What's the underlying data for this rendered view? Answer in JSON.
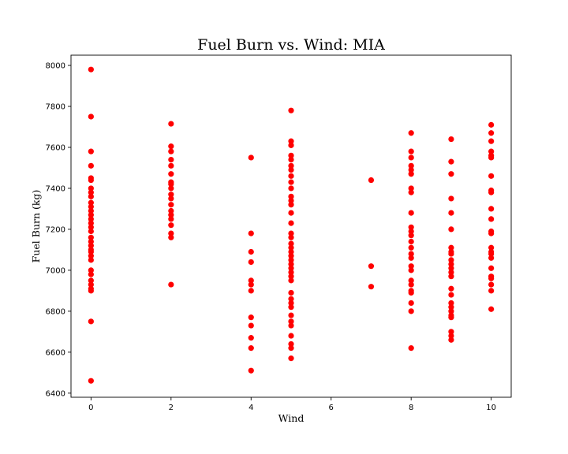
{
  "chart_data": {
    "type": "scatter",
    "title": "Fuel Burn vs. Wind: MIA",
    "xlabel": "Wind",
    "ylabel": "Fuel Burn (kg)",
    "xlim": [
      -0.5,
      10.5
    ],
    "ylim": [
      6380,
      8050
    ],
    "xticks": [
      0,
      2,
      4,
      6,
      8,
      10
    ],
    "yticks": [
      6400,
      6600,
      6800,
      7000,
      7200,
      7400,
      7600,
      7800,
      8000
    ],
    "grid": false,
    "marker_color": "#ff0000",
    "series": [
      {
        "points": [
          [
            0,
            7980
          ],
          [
            0,
            7750
          ],
          [
            0,
            7580
          ],
          [
            0,
            7510
          ],
          [
            0,
            7450
          ],
          [
            0,
            7440
          ],
          [
            0,
            7400
          ],
          [
            0,
            7380
          ],
          [
            0,
            7360
          ],
          [
            0,
            7330
          ],
          [
            0,
            7310
          ],
          [
            0,
            7290
          ],
          [
            0,
            7270
          ],
          [
            0,
            7250
          ],
          [
            0,
            7230
          ],
          [
            0,
            7210
          ],
          [
            0,
            7190
          ],
          [
            0,
            7160
          ],
          [
            0,
            7140
          ],
          [
            0,
            7120
          ],
          [
            0,
            7100
          ],
          [
            0,
            7090
          ],
          [
            0,
            7070
          ],
          [
            0,
            7050
          ],
          [
            0,
            7000
          ],
          [
            0,
            6980
          ],
          [
            0,
            6950
          ],
          [
            0,
            6930
          ],
          [
            0,
            6910
          ],
          [
            0,
            6900
          ],
          [
            0,
            6750
          ],
          [
            0,
            6460
          ],
          [
            2,
            7715
          ],
          [
            2,
            7605
          ],
          [
            2,
            7580
          ],
          [
            2,
            7540
          ],
          [
            2,
            7510
          ],
          [
            2,
            7470
          ],
          [
            2,
            7430
          ],
          [
            2,
            7420
          ],
          [
            2,
            7400
          ],
          [
            2,
            7370
          ],
          [
            2,
            7350
          ],
          [
            2,
            7320
          ],
          [
            2,
            7290
          ],
          [
            2,
            7270
          ],
          [
            2,
            7250
          ],
          [
            2,
            7220
          ],
          [
            2,
            7180
          ],
          [
            2,
            7160
          ],
          [
            2,
            6930
          ],
          [
            4,
            7550
          ],
          [
            4,
            7180
          ],
          [
            4,
            7090
          ],
          [
            4,
            7040
          ],
          [
            4,
            6950
          ],
          [
            4,
            6930
          ],
          [
            4,
            6900
          ],
          [
            4,
            6770
          ],
          [
            4,
            6730
          ],
          [
            4,
            6670
          ],
          [
            4,
            6620
          ],
          [
            4,
            6510
          ],
          [
            5,
            7780
          ],
          [
            5,
            7630
          ],
          [
            5,
            7610
          ],
          [
            5,
            7560
          ],
          [
            5,
            7540
          ],
          [
            5,
            7510
          ],
          [
            5,
            7490
          ],
          [
            5,
            7460
          ],
          [
            5,
            7430
          ],
          [
            5,
            7400
          ],
          [
            5,
            7360
          ],
          [
            5,
            7340
          ],
          [
            5,
            7320
          ],
          [
            5,
            7280
          ],
          [
            5,
            7230
          ],
          [
            5,
            7180
          ],
          [
            5,
            7160
          ],
          [
            5,
            7130
          ],
          [
            5,
            7110
          ],
          [
            5,
            7090
          ],
          [
            5,
            7070
          ],
          [
            5,
            7050
          ],
          [
            5,
            7030
          ],
          [
            5,
            7010
          ],
          [
            5,
            6990
          ],
          [
            5,
            6970
          ],
          [
            5,
            6950
          ],
          [
            5,
            6890
          ],
          [
            5,
            6860
          ],
          [
            5,
            6840
          ],
          [
            5,
            6820
          ],
          [
            5,
            6780
          ],
          [
            5,
            6750
          ],
          [
            5,
            6730
          ],
          [
            5,
            6680
          ],
          [
            5,
            6640
          ],
          [
            5,
            6620
          ],
          [
            5,
            6570
          ],
          [
            7,
            7440
          ],
          [
            7,
            7020
          ],
          [
            7,
            6920
          ],
          [
            8,
            7670
          ],
          [
            8,
            7580
          ],
          [
            8,
            7550
          ],
          [
            8,
            7510
          ],
          [
            8,
            7490
          ],
          [
            8,
            7470
          ],
          [
            8,
            7400
          ],
          [
            8,
            7380
          ],
          [
            8,
            7280
          ],
          [
            8,
            7210
          ],
          [
            8,
            7190
          ],
          [
            8,
            7170
          ],
          [
            8,
            7140
          ],
          [
            8,
            7110
          ],
          [
            8,
            7080
          ],
          [
            8,
            7060
          ],
          [
            8,
            7020
          ],
          [
            8,
            7000
          ],
          [
            8,
            6950
          ],
          [
            8,
            6930
          ],
          [
            8,
            6900
          ],
          [
            8,
            6890
          ],
          [
            8,
            6840
          ],
          [
            8,
            6800
          ],
          [
            8,
            6620
          ],
          [
            9,
            7640
          ],
          [
            9,
            7530
          ],
          [
            9,
            7470
          ],
          [
            9,
            7350
          ],
          [
            9,
            7280
          ],
          [
            9,
            7200
          ],
          [
            9,
            7110
          ],
          [
            9,
            7090
          ],
          [
            9,
            7080
          ],
          [
            9,
            7050
          ],
          [
            9,
            7030
          ],
          [
            9,
            7010
          ],
          [
            9,
            6990
          ],
          [
            9,
            6970
          ],
          [
            9,
            6910
          ],
          [
            9,
            6880
          ],
          [
            9,
            6840
          ],
          [
            9,
            6820
          ],
          [
            9,
            6800
          ],
          [
            9,
            6780
          ],
          [
            9,
            6770
          ],
          [
            9,
            6700
          ],
          [
            9,
            6680
          ],
          [
            9,
            6660
          ],
          [
            10,
            7710
          ],
          [
            10,
            7670
          ],
          [
            10,
            7630
          ],
          [
            10,
            7580
          ],
          [
            10,
            7560
          ],
          [
            10,
            7550
          ],
          [
            10,
            7460
          ],
          [
            10,
            7390
          ],
          [
            10,
            7380
          ],
          [
            10,
            7300
          ],
          [
            10,
            7250
          ],
          [
            10,
            7190
          ],
          [
            10,
            7180
          ],
          [
            10,
            7110
          ],
          [
            10,
            7090
          ],
          [
            10,
            7080
          ],
          [
            10,
            7060
          ],
          [
            10,
            7010
          ],
          [
            10,
            6970
          ],
          [
            10,
            6960
          ],
          [
            10,
            6930
          ],
          [
            10,
            6900
          ],
          [
            10,
            6810
          ]
        ]
      }
    ]
  }
}
